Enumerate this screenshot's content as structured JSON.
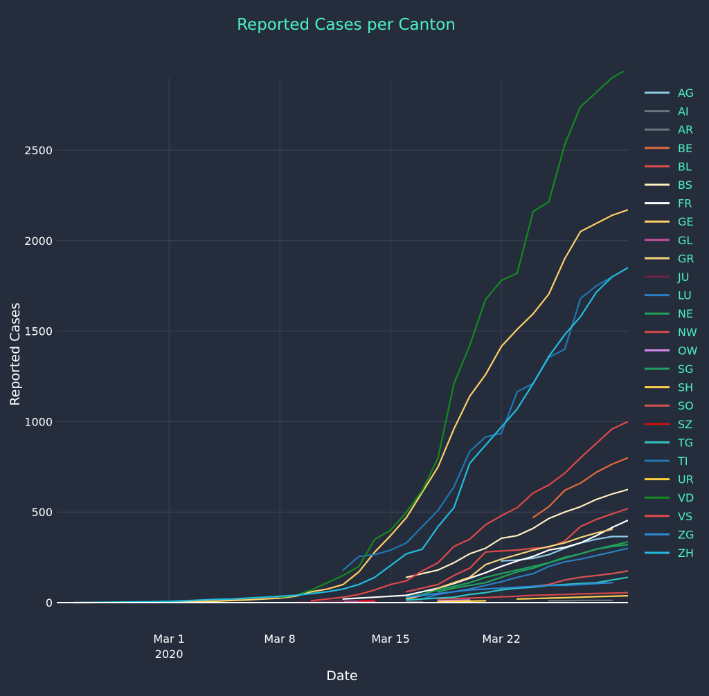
{
  "chart_data": {
    "type": "line",
    "title": "Reported Cases per Canton",
    "xlabel": "Date",
    "ylabel": "Reported Cases",
    "x_range": [
      "2020-02-24",
      "2020-03-30"
    ],
    "ylim": [
      0,
      2900
    ],
    "x_ticks": [
      {
        "date": "2020-03-01",
        "label": "Mar 1",
        "sublabel": "2020"
      },
      {
        "date": "2020-03-08",
        "label": "Mar 8",
        "sublabel": ""
      },
      {
        "date": "2020-03-15",
        "label": "Mar 15",
        "sublabel": ""
      },
      {
        "date": "2020-03-22",
        "label": "Mar 22",
        "sublabel": ""
      }
    ],
    "y_ticks": [
      0,
      500,
      1000,
      1500,
      2000,
      2500
    ],
    "grid": true,
    "legend_position": "right",
    "colors": {
      "background": "#252d3d",
      "grid": "#3b4457",
      "axis_text": "#ffffff",
      "title_text": "#4cf2c0",
      "legend_text": "#4cf2c0"
    },
    "series": [
      {
        "name": "AG",
        "color": "#8ecae6",
        "x": [
          "2020-03-22",
          "2020-03-23",
          "2020-03-24",
          "2020-03-25",
          "2020-03-26",
          "2020-03-27",
          "2020-03-28",
          "2020-03-29",
          "2020-03-30"
        ],
        "y": [
          230,
          235,
          245,
          265,
          300,
          330,
          350,
          365,
          365
        ]
      },
      {
        "name": "AI",
        "color": "#6c7380",
        "x": [
          "2020-03-25",
          "2020-03-26",
          "2020-03-27",
          "2020-03-28",
          "2020-03-29"
        ],
        "y": [
          10,
          10,
          12,
          12,
          12
        ]
      },
      {
        "name": "AR",
        "color": "#6c7380",
        "x": [
          "2020-03-16",
          "2020-03-17"
        ],
        "y": [
          5,
          5
        ]
      },
      {
        "name": "BE",
        "color": "#e36a3a",
        "x": [
          "2020-03-24",
          "2020-03-25",
          "2020-03-26",
          "2020-03-27",
          "2020-03-28",
          "2020-03-29",
          "2020-03-30"
        ],
        "y": [
          470,
          530,
          620,
          660,
          720,
          765,
          800
        ]
      },
      {
        "name": "BL",
        "color": "#e04a4a",
        "x": [
          "2020-03-16",
          "2020-03-17",
          "2020-03-18",
          "2020-03-19",
          "2020-03-20",
          "2020-03-21",
          "2020-03-22",
          "2020-03-23",
          "2020-03-24",
          "2020-03-25",
          "2020-03-26",
          "2020-03-27",
          "2020-03-28",
          "2020-03-29",
          "2020-03-30"
        ],
        "y": [
          60,
          80,
          100,
          150,
          190,
          280,
          285,
          290,
          300,
          305,
          340,
          420,
          460,
          490,
          520
        ]
      },
      {
        "name": "BS",
        "color": "#fdf0c0",
        "x": [
          "2020-03-16",
          "2020-03-17",
          "2020-03-18",
          "2020-03-19",
          "2020-03-20",
          "2020-03-21",
          "2020-03-22",
          "2020-03-23",
          "2020-03-24",
          "2020-03-25",
          "2020-03-26",
          "2020-03-27",
          "2020-03-28",
          "2020-03-29",
          "2020-03-30"
        ],
        "y": [
          140,
          160,
          180,
          220,
          270,
          300,
          355,
          370,
          410,
          465,
          500,
          530,
          570,
          600,
          625
        ]
      },
      {
        "name": "FR",
        "color": "#ffffff",
        "x": [
          "2020-03-12",
          "2020-03-13",
          "2020-03-14",
          "2020-03-15",
          "2020-03-16",
          "2020-03-17",
          "2020-03-18",
          "2020-03-19",
          "2020-03-20",
          "2020-03-21",
          "2020-03-22",
          "2020-03-23",
          "2020-03-24",
          "2020-03-25",
          "2020-03-26",
          "2020-03-27",
          "2020-03-28",
          "2020-03-29",
          "2020-03-30"
        ],
        "y": [
          20,
          25,
          30,
          35,
          40,
          60,
          80,
          105,
          135,
          165,
          200,
          230,
          255,
          290,
          305,
          330,
          370,
          415,
          455
        ]
      },
      {
        "name": "GE",
        "color": "#ffd166",
        "x": [
          "2020-02-24",
          "2020-02-25",
          "2020-02-26",
          "2020-02-27",
          "2020-02-28",
          "2020-02-29",
          "2020-03-01",
          "2020-03-02",
          "2020-03-03",
          "2020-03-04",
          "2020-03-05",
          "2020-03-06",
          "2020-03-07",
          "2020-03-08",
          "2020-03-09",
          "2020-03-10",
          "2020-03-11",
          "2020-03-12",
          "2020-03-13",
          "2020-03-14",
          "2020-03-15",
          "2020-03-16",
          "2020-03-17",
          "2020-03-18",
          "2020-03-19",
          "2020-03-20",
          "2020-03-21",
          "2020-03-22",
          "2020-03-23",
          "2020-03-24",
          "2020-03-25",
          "2020-03-26",
          "2020-03-27",
          "2020-03-28",
          "2020-03-29",
          "2020-03-30"
        ],
        "y": [
          0,
          0,
          1,
          2,
          3,
          3,
          4,
          5,
          6,
          8,
          12,
          15,
          20,
          25,
          35,
          60,
          75,
          100,
          170,
          280,
          370,
          470,
          610,
          750,
          960,
          1140,
          1260,
          1415,
          1510,
          1595,
          1705,
          1900,
          2050,
          2095,
          2140,
          2170
        ]
      },
      {
        "name": "GL",
        "color": "#c94f9b",
        "x": [
          "2020-03-11",
          "2020-03-12",
          "2020-03-13",
          "2020-03-14"
        ],
        "y": [
          5,
          6,
          7,
          8
        ]
      },
      {
        "name": "GR",
        "color": "#f4d27a",
        "x": [
          "2020-03-16",
          "2020-03-17",
          "2020-03-18",
          "2020-03-19",
          "2020-03-20",
          "2020-03-21",
          "2020-03-22",
          "2020-03-23",
          "2020-03-24",
          "2020-03-25",
          "2020-03-26",
          "2020-03-27",
          "2020-03-28",
          "2020-03-29"
        ],
        "y": [
          20,
          40,
          80,
          110,
          140,
          210,
          240,
          265,
          290,
          310,
          330,
          360,
          385,
          405
        ]
      },
      {
        "name": "JU",
        "color": "#6b2448",
        "x": [
          "2020-03-09",
          "2020-03-10",
          "2020-03-11",
          "2020-03-12"
        ],
        "y": [
          2,
          3,
          4,
          5
        ]
      },
      {
        "name": "LU",
        "color": "#2a7fc1",
        "x": [
          "2020-03-17",
          "2020-03-18",
          "2020-03-19",
          "2020-03-20",
          "2020-03-21",
          "2020-03-22",
          "2020-03-23",
          "2020-03-24",
          "2020-03-25",
          "2020-03-26",
          "2020-03-27",
          "2020-03-28",
          "2020-03-29",
          "2020-03-30"
        ],
        "y": [
          20,
          45,
          60,
          75,
          95,
          115,
          140,
          160,
          200,
          225,
          240,
          260,
          280,
          300
        ]
      },
      {
        "name": "NE",
        "color": "#1fa05a",
        "x": [
          "2020-03-16",
          "2020-03-17",
          "2020-03-18",
          "2020-03-19",
          "2020-03-20",
          "2020-03-21",
          "2020-03-22",
          "2020-03-23",
          "2020-03-24",
          "2020-03-25",
          "2020-03-26",
          "2020-03-27",
          "2020-03-28",
          "2020-03-29",
          "2020-03-30"
        ],
        "y": [
          30,
          45,
          70,
          90,
          110,
          140,
          160,
          180,
          200,
          220,
          245,
          270,
          295,
          315,
          335
        ]
      },
      {
        "name": "NW",
        "color": "#d94848",
        "x": [
          "2020-03-18",
          "2020-03-19",
          "2020-03-20",
          "2020-03-21",
          "2020-03-22",
          "2020-03-23",
          "2020-03-24",
          "2020-03-25",
          "2020-03-26",
          "2020-03-27",
          "2020-03-28",
          "2020-03-29",
          "2020-03-30"
        ],
        "y": [
          20,
          22,
          25,
          28,
          32,
          35,
          40,
          42,
          45,
          48,
          50,
          52,
          55
        ]
      },
      {
        "name": "OW",
        "color": "#d88af0",
        "x": [
          "2020-03-18",
          "2020-03-19",
          "2020-03-20"
        ],
        "y": [
          10,
          12,
          14
        ]
      },
      {
        "name": "SG",
        "color": "#22a05e",
        "x": [
          "2020-03-18",
          "2020-03-19",
          "2020-03-20",
          "2020-03-21",
          "2020-03-22",
          "2020-03-23",
          "2020-03-24",
          "2020-03-25",
          "2020-03-26",
          "2020-03-27",
          "2020-03-28",
          "2020-03-29",
          "2020-03-30"
        ],
        "y": [
          60,
          80,
          95,
          110,
          140,
          170,
          190,
          220,
          250,
          270,
          295,
          310,
          320
        ]
      },
      {
        "name": "SH",
        "color": "#ffd34d",
        "x": [
          "2020-03-23",
          "2020-03-24",
          "2020-03-25",
          "2020-03-26",
          "2020-03-27",
          "2020-03-28",
          "2020-03-29",
          "2020-03-30"
        ],
        "y": [
          20,
          22,
          25,
          27,
          30,
          33,
          35,
          38
        ]
      },
      {
        "name": "SO",
        "color": "#d9534f",
        "x": [
          "2020-03-24",
          "2020-03-25",
          "2020-03-26",
          "2020-03-27",
          "2020-03-28",
          "2020-03-29",
          "2020-03-30"
        ],
        "y": [
          90,
          100,
          125,
          140,
          150,
          160,
          175
        ]
      },
      {
        "name": "SZ",
        "color": "#cc1111",
        "x": [
          "2020-03-13",
          "2020-03-14"
        ],
        "y": [
          10,
          12
        ]
      },
      {
        "name": "TG",
        "color": "#2ec4c4",
        "x": [
          "2020-03-16",
          "2020-03-17",
          "2020-03-18",
          "2020-03-19",
          "2020-03-20",
          "2020-03-21",
          "2020-03-22",
          "2020-03-23",
          "2020-03-24",
          "2020-03-25",
          "2020-03-26",
          "2020-03-27",
          "2020-03-28",
          "2020-03-29",
          "2020-03-30"
        ],
        "y": [
          15,
          20,
          25,
          30,
          45,
          55,
          70,
          80,
          85,
          95,
          100,
          105,
          110,
          125,
          140
        ]
      },
      {
        "name": "TI",
        "color": "#1f78b4",
        "x": [
          "2020-03-12",
          "2020-03-13",
          "2020-03-14",
          "2020-03-15",
          "2020-03-16",
          "2020-03-17",
          "2020-03-18",
          "2020-03-19",
          "2020-03-20",
          "2020-03-21",
          "2020-03-22",
          "2020-03-23",
          "2020-03-24",
          "2020-03-25",
          "2020-03-26",
          "2020-03-27",
          "2020-03-28",
          "2020-03-29"
        ],
        "y": [
          180,
          255,
          265,
          290,
          330,
          420,
          510,
          640,
          835,
          915,
          935,
          1165,
          1210,
          1355,
          1400,
          1680,
          1750,
          1800
        ]
      },
      {
        "name": "UR",
        "color": "#ffd23f",
        "x": [
          "2020-03-18",
          "2020-03-19",
          "2020-03-20",
          "2020-03-21"
        ],
        "y": [
          5,
          6,
          8,
          10
        ]
      },
      {
        "name": "VD",
        "color": "#138a1e",
        "x": [
          "2020-03-08",
          "2020-03-09",
          "2020-03-10",
          "2020-03-11",
          "2020-03-12",
          "2020-03-13",
          "2020-03-14",
          "2020-03-15",
          "2020-03-16",
          "2020-03-17",
          "2020-03-18",
          "2020-03-19",
          "2020-03-20",
          "2020-03-21",
          "2020-03-22",
          "2020-03-23",
          "2020-03-24",
          "2020-03-25",
          "2020-03-26",
          "2020-03-27",
          "2020-03-28",
          "2020-03-29",
          "2020-03-30"
        ],
        "y": [
          30,
          40,
          70,
          110,
          150,
          200,
          350,
          400,
          500,
          620,
          800,
          1210,
          1420,
          1675,
          1780,
          1820,
          2160,
          2215,
          2530,
          2740,
          2820,
          2900,
          2950
        ]
      },
      {
        "name": "VS",
        "color": "#e04848",
        "x": [
          "2020-03-10",
          "2020-03-11",
          "2020-03-12",
          "2020-03-13",
          "2020-03-14",
          "2020-03-15",
          "2020-03-16",
          "2020-03-17",
          "2020-03-18",
          "2020-03-19",
          "2020-03-20",
          "2020-03-21",
          "2020-03-22",
          "2020-03-23",
          "2020-03-24",
          "2020-03-25",
          "2020-03-26",
          "2020-03-27",
          "2020-03-28",
          "2020-03-29",
          "2020-03-30"
        ],
        "y": [
          10,
          20,
          30,
          45,
          70,
          100,
          120,
          175,
          220,
          310,
          350,
          430,
          480,
          525,
          605,
          650,
          715,
          800,
          880,
          960,
          1000
        ]
      },
      {
        "name": "ZG",
        "color": "#2c89d4",
        "x": [
          "2020-03-16",
          "2020-03-17",
          "2020-03-18",
          "2020-03-19",
          "2020-03-20",
          "2020-03-21",
          "2020-03-22",
          "2020-03-23",
          "2020-03-24",
          "2020-03-25",
          "2020-03-26",
          "2020-03-27",
          "2020-03-28",
          "2020-03-29"
        ],
        "y": [
          30,
          40,
          50,
          60,
          70,
          75,
          80,
          85,
          90,
          95,
          95,
          100,
          105,
          110
        ]
      },
      {
        "name": "ZH",
        "color": "#22bde0",
        "x": [
          "2020-02-24",
          "2020-02-25",
          "2020-02-26",
          "2020-02-27",
          "2020-02-28",
          "2020-02-29",
          "2020-03-01",
          "2020-03-02",
          "2020-03-03",
          "2020-03-04",
          "2020-03-05",
          "2020-03-06",
          "2020-03-07",
          "2020-03-08",
          "2020-03-09",
          "2020-03-10",
          "2020-03-11",
          "2020-03-12",
          "2020-03-13",
          "2020-03-14",
          "2020-03-16",
          "2020-03-17",
          "2020-03-18",
          "2020-03-19",
          "2020-03-20",
          "2020-03-23",
          "2020-03-24",
          "2020-03-25",
          "2020-03-26",
          "2020-03-27",
          "2020-03-28",
          "2020-03-29",
          "2020-03-30"
        ],
        "y": [
          0,
          1,
          2,
          3,
          4,
          5,
          7,
          10,
          14,
          18,
          20,
          25,
          30,
          35,
          40,
          50,
          60,
          75,
          100,
          140,
          270,
          295,
          420,
          525,
          770,
          1070,
          1210,
          1360,
          1480,
          1580,
          1715,
          1800,
          1850
        ]
      }
    ]
  }
}
